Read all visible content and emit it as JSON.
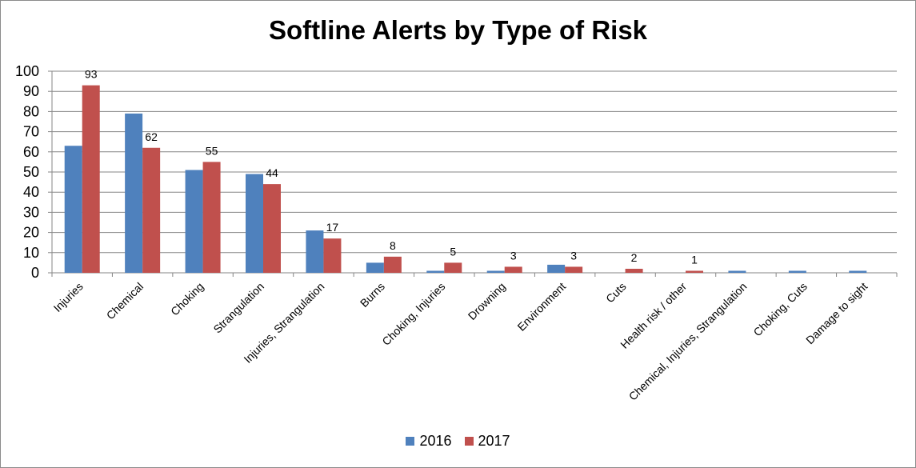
{
  "chart_data": {
    "type": "bar",
    "title": "Softline Alerts by Type of Risk",
    "categories": [
      "Injuries",
      "Chemical",
      "Choking",
      "Strangulation",
      "Injuries, Strangulation",
      "Burns",
      "Choking, Injuries",
      "Drowning",
      "Environment",
      "Cuts",
      "Health risk / other",
      "Chemical, Injuries, Strangulation",
      "Choking, Cuts",
      "Damage to sight"
    ],
    "series": [
      {
        "name": "2016",
        "color": "#4f81bd",
        "values": [
          63,
          79,
          51,
          49,
          21,
          5,
          1,
          1,
          4,
          0,
          0,
          1,
          1,
          1
        ],
        "show_labels": false
      },
      {
        "name": "2017",
        "color": "#c0504d",
        "values": [
          93,
          62,
          55,
          44,
          17,
          8,
          5,
          3,
          3,
          2,
          1,
          0,
          0,
          0
        ],
        "show_labels": true
      }
    ],
    "data_labels_2017": [
      "93",
      "62",
      "55",
      "44",
      "17",
      "8",
      "5",
      "3",
      "3",
      "2",
      "1",
      "",
      "",
      ""
    ],
    "yticks": [
      "0",
      "10",
      "20",
      "30",
      "40",
      "50",
      "60",
      "70",
      "80",
      "90",
      "100"
    ],
    "ylim": [
      0,
      100
    ],
    "grid": true,
    "legend_position": "bottom"
  }
}
